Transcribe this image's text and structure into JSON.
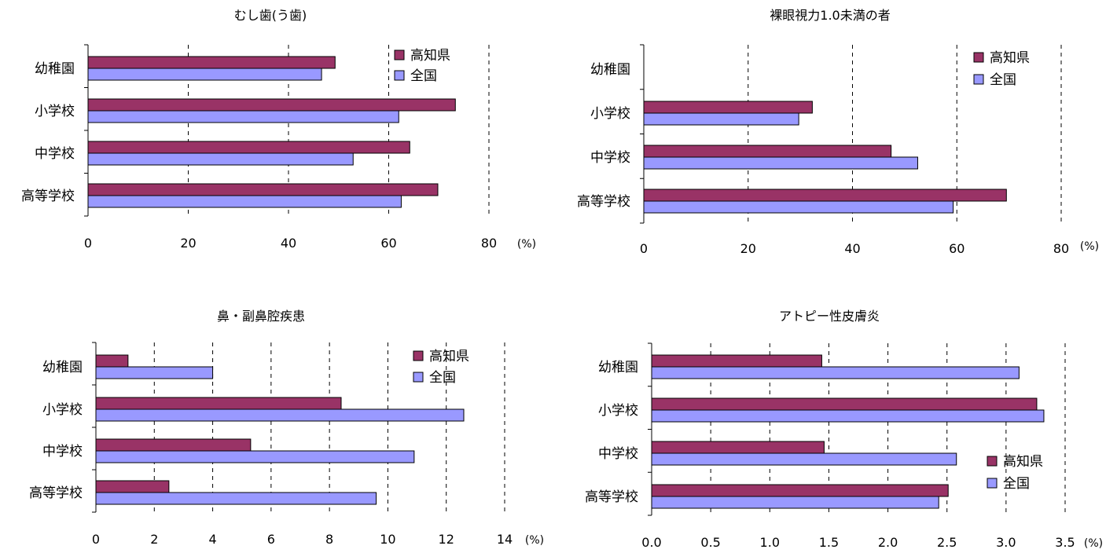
{
  "colors": {
    "kochi": "#993366",
    "national": "#9999ff"
  },
  "legend": {
    "kochi": "高知県",
    "national": "全国"
  },
  "chart_data": [
    {
      "type": "bar",
      "orientation": "horizontal",
      "title": "むし歯(う歯)",
      "categories": [
        "幼稚園",
        "小学校",
        "中学校",
        "高等学校"
      ],
      "series": [
        {
          "name": "高知県",
          "values": [
            49.3,
            73.3,
            64.2,
            69.8
          ]
        },
        {
          "name": "全国",
          "values": [
            46.6,
            62.0,
            52.9,
            62.5
          ]
        }
      ],
      "xlim": [
        0,
        80
      ],
      "ticks": [
        0,
        20,
        40,
        60,
        80
      ],
      "tick_labels": [
        "0",
        "20",
        "40",
        "60",
        "80"
      ],
      "unit": "(%)",
      "legend_position": "top-right"
    },
    {
      "type": "bar",
      "orientation": "horizontal",
      "title": "裸眼視力1.0未満の者",
      "categories": [
        "幼稚園",
        "小学校",
        "中学校",
        "高等学校"
      ],
      "series": [
        {
          "name": "高知県",
          "values": [
            null,
            32.3,
            47.4,
            69.5
          ]
        },
        {
          "name": "全国",
          "values": [
            null,
            29.7,
            52.5,
            59.3
          ]
        }
      ],
      "xlim": [
        0,
        80
      ],
      "ticks": [
        0,
        20,
        40,
        60,
        80
      ],
      "tick_labels": [
        "0",
        "20",
        "40",
        "60",
        "80"
      ],
      "unit": "(%)",
      "legend_position": "top-right"
    },
    {
      "type": "bar",
      "orientation": "horizontal",
      "title": "鼻・副鼻腔疾患",
      "categories": [
        "幼稚園",
        "小学校",
        "中学校",
        "高等学校"
      ],
      "series": [
        {
          "name": "高知県",
          "values": [
            1.1,
            8.4,
            5.3,
            2.5
          ]
        },
        {
          "name": "全国",
          "values": [
            4.0,
            12.6,
            10.9,
            9.6
          ]
        }
      ],
      "xlim": [
        0,
        14
      ],
      "ticks": [
        0,
        2,
        4,
        6,
        8,
        10,
        12,
        14
      ],
      "tick_labels": [
        "0",
        "2",
        "4",
        "6",
        "8",
        "10",
        "12",
        "14"
      ],
      "unit": "(%)",
      "legend_position": "top-right"
    },
    {
      "type": "bar",
      "orientation": "horizontal",
      "title": "アトピー性皮膚炎",
      "categories": [
        "幼稚園",
        "小学校",
        "中学校",
        "高等学校"
      ],
      "series": [
        {
          "name": "高知県",
          "values": [
            1.44,
            3.26,
            1.46,
            2.51
          ]
        },
        {
          "name": "全国",
          "values": [
            3.11,
            3.32,
            2.58,
            2.43
          ]
        }
      ],
      "xlim": [
        0,
        3.5
      ],
      "ticks": [
        0,
        0.5,
        1,
        1.5,
        2,
        2.5,
        3,
        3.5
      ],
      "tick_labels": [
        "0.0",
        "0.5",
        "1.0",
        "1.5",
        "2.0",
        "2.5",
        "3.0",
        "3.5"
      ],
      "unit": "(%)",
      "legend_position": "bottom-right"
    }
  ]
}
